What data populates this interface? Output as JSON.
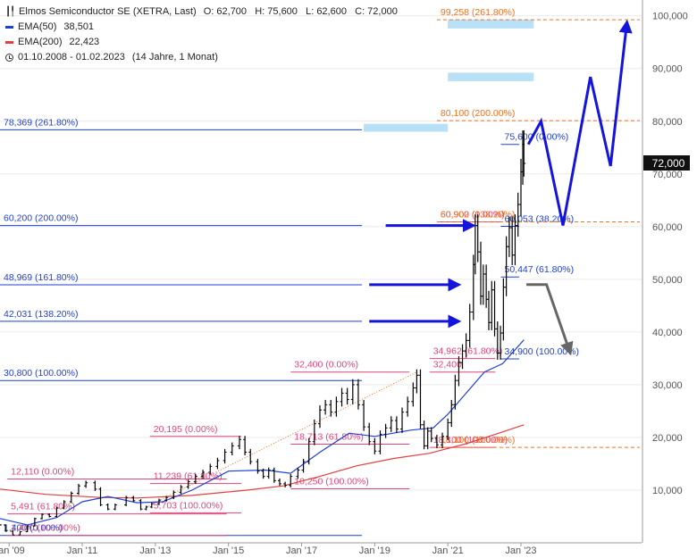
{
  "header": {
    "instrument": "Elmos Semiconductor SE (XETRA, Last)",
    "ohlc": "O: 62,700   H: 75,600   L: 62,600   C: 72,000",
    "ema50_label": "EMA(50)",
    "ema50_value": "38,501",
    "ema200_label": "EMA(200)",
    "ema200_value": "22,423",
    "range": "01.10.2008 - 01.02.2023",
    "duration": "(14 Jahre, 1 Monat)",
    "price_badge": "72,000"
  },
  "colors": {
    "candle": "#000000",
    "ema50": "#1f3fd6",
    "ema200": "#e04040",
    "fib_blue": "#1f3fd6",
    "fib_pink": "#e0457a",
    "fib_orange": "#f07020",
    "box_lightblue": "#b8e0f6",
    "arrow_blue": "#1414dc",
    "arrow_gray": "#666666",
    "badge_bg": "#111111",
    "badge_text": "#ffffff",
    "grid": "#eaeaea",
    "axis_text": "#555555"
  },
  "chart_data": {
    "type": "candlestick",
    "x_ticks": [
      "Jan '09",
      "Jan '11",
      "Jan '13",
      "Jan '15",
      "Jan '17",
      "Jan '19",
      "Jan '21",
      "Jan '23"
    ],
    "y_ticks": [
      "10,000",
      "20,000",
      "30,000",
      "40,000",
      "50,000",
      "60,000",
      "70,000",
      "80,000",
      "90,000",
      "100,000"
    ],
    "y_tick_values": [
      10000,
      20000,
      30000,
      40000,
      50000,
      60000,
      70000,
      80000,
      90000,
      100000
    ],
    "ylim": [
      0,
      103000
    ],
    "xlim": [
      2008.75,
      2026.3
    ],
    "prices": [
      [
        2008.75,
        3400
      ],
      [
        2008.9,
        2200
      ],
      [
        2009.1,
        1500
      ],
      [
        2009.3,
        2100
      ],
      [
        2009.5,
        3200
      ],
      [
        2009.7,
        4600
      ],
      [
        2009.9,
        5400
      ],
      [
        2010.1,
        5000
      ],
      [
        2010.3,
        6600
      ],
      [
        2010.5,
        7800
      ],
      [
        2010.7,
        9400
      ],
      [
        2010.9,
        10800
      ],
      [
        2011.1,
        11400
      ],
      [
        2011.35,
        10200
      ],
      [
        2011.5,
        7200
      ],
      [
        2011.7,
        6400
      ],
      [
        2011.9,
        7200
      ],
      [
        2012.2,
        8600
      ],
      [
        2012.4,
        8000
      ],
      [
        2012.6,
        6400
      ],
      [
        2012.75,
        6800
      ],
      [
        2012.9,
        7400
      ],
      [
        2013.1,
        8100
      ],
      [
        2013.3,
        8600
      ],
      [
        2013.5,
        9600
      ],
      [
        2013.7,
        10600
      ],
      [
        2013.9,
        11600
      ],
      [
        2014.1,
        12600
      ],
      [
        2014.3,
        13400
      ],
      [
        2014.5,
        14500
      ],
      [
        2014.7,
        15600
      ],
      [
        2014.9,
        17200
      ],
      [
        2015.1,
        18400
      ],
      [
        2015.3,
        19600
      ],
      [
        2015.45,
        17200
      ],
      [
        2015.6,
        15400
      ],
      [
        2015.8,
        13600
      ],
      [
        2015.95,
        12600
      ],
      [
        2016.1,
        13800
      ],
      [
        2016.25,
        11800
      ],
      [
        2016.4,
        11200
      ],
      [
        2016.55,
        10900
      ],
      [
        2016.7,
        12600
      ],
      [
        2016.9,
        13800
      ],
      [
        2017.05,
        15400
      ],
      [
        2017.2,
        19200
      ],
      [
        2017.35,
        22600
      ],
      [
        2017.5,
        25200
      ],
      [
        2017.65,
        26200
      ],
      [
        2017.8,
        24800
      ],
      [
        2017.95,
        26800
      ],
      [
        2018.1,
        28400
      ],
      [
        2018.25,
        27200
      ],
      [
        2018.4,
        30000
      ],
      [
        2018.55,
        26200
      ],
      [
        2018.7,
        22000
      ],
      [
        2018.85,
        19200
      ],
      [
        2019.0,
        17400
      ],
      [
        2019.15,
        20600
      ],
      [
        2019.3,
        21800
      ],
      [
        2019.45,
        23200
      ],
      [
        2019.6,
        21600
      ],
      [
        2019.75,
        24800
      ],
      [
        2019.9,
        26800
      ],
      [
        2020.05,
        29400
      ],
      [
        2020.15,
        31800
      ],
      [
        2020.25,
        22400
      ],
      [
        2020.35,
        18400
      ],
      [
        2020.45,
        21200
      ],
      [
        2020.55,
        19800
      ],
      [
        2020.7,
        18600
      ],
      [
        2020.85,
        20200
      ],
      [
        2021.0,
        22800
      ],
      [
        2021.1,
        26200
      ],
      [
        2021.2,
        30800
      ],
      [
        2021.3,
        34200
      ],
      [
        2021.4,
        36400
      ],
      [
        2021.5,
        38400
      ],
      [
        2021.6,
        43800
      ],
      [
        2021.7,
        52800
      ],
      [
        2021.75,
        60200
      ],
      [
        2021.82,
        55200
      ],
      [
        2021.9,
        46800
      ],
      [
        2021.97,
        51000
      ],
      [
        2022.05,
        46200
      ],
      [
        2022.12,
        41800
      ],
      [
        2022.2,
        48000
      ],
      [
        2022.28,
        40600
      ],
      [
        2022.36,
        36000
      ],
      [
        2022.44,
        39800
      ],
      [
        2022.52,
        48500
      ],
      [
        2022.6,
        56200
      ],
      [
        2022.68,
        59800
      ],
      [
        2022.76,
        54600
      ],
      [
        2022.84,
        60200
      ],
      [
        2022.92,
        64200
      ],
      [
        2023.0,
        70400
      ],
      [
        2023.05,
        75600
      ],
      [
        2023.08,
        72000
      ]
    ],
    "ema50": [
      [
        2008.75,
        4600
      ],
      [
        2009.5,
        3400
      ],
      [
        2010.3,
        4800
      ],
      [
        2011.0,
        7800
      ],
      [
        2011.7,
        8800
      ],
      [
        2012.5,
        7600
      ],
      [
        2013.2,
        7800
      ],
      [
        2014.0,
        10000
      ],
      [
        2015.0,
        13600
      ],
      [
        2016.0,
        13800
      ],
      [
        2016.7,
        13200
      ],
      [
        2017.5,
        17200
      ],
      [
        2018.3,
        20800
      ],
      [
        2019.0,
        20200
      ],
      [
        2020.0,
        21400
      ],
      [
        2020.6,
        21800
      ],
      [
        2021.0,
        24400
      ],
      [
        2021.5,
        28400
      ],
      [
        2022.0,
        32400
      ],
      [
        2022.5,
        34000
      ],
      [
        2023.08,
        38500
      ]
    ],
    "ema200": [
      [
        2008.75,
        10200
      ],
      [
        2010.0,
        9200
      ],
      [
        2011.5,
        8600
      ],
      [
        2012.5,
        8500
      ],
      [
        2014.0,
        9000
      ],
      [
        2015.5,
        10000
      ],
      [
        2016.5,
        10800
      ],
      [
        2017.5,
        12600
      ],
      [
        2018.5,
        14600
      ],
      [
        2019.5,
        16000
      ],
      [
        2020.5,
        17000
      ],
      [
        2021.5,
        18800
      ],
      [
        2022.3,
        20600
      ],
      [
        2023.08,
        22400
      ]
    ],
    "fib_sets": [
      {
        "color_key": "fib_blue",
        "x_start": 2008.75,
        "x_end": 2018.65,
        "levels": [
          {
            "value": 78369,
            "label": "78,369 (261.80%)"
          },
          {
            "value": 60200,
            "label": "60,200 (200.00%)"
          },
          {
            "value": 48969,
            "label": "48,969 (161.80%)"
          },
          {
            "value": 42031,
            "label": "42,031 (138.20%)"
          },
          {
            "value": 30800,
            "label": "30,800 (100.00%)"
          },
          {
            "value": 1400,
            "label": "1,400 (0.00%)"
          }
        ]
      },
      {
        "color_key": "fib_pink",
        "x_start": 2008.95,
        "x_end": 2014.95,
        "levels": [
          {
            "value": 12110,
            "label": "12,110 (0.00%)"
          },
          {
            "value": 5491,
            "label": "5,491 (61.80%)"
          },
          {
            "value": 1400,
            "label": "1,400 (100.00%)"
          }
        ]
      },
      {
        "color_key": "fib_pink",
        "x_start": 2012.85,
        "x_end": 2015.35,
        "levels": [
          {
            "value": 20195,
            "label": "20,195 (0.00%)"
          },
          {
            "value": 11239,
            "label": "11,239 (61.80%)"
          },
          {
            "value": 5703,
            "label": "5,703 (100.00%)"
          }
        ]
      },
      {
        "color_key": "fib_pink",
        "x_start": 2016.7,
        "x_end": 2019.95,
        "levels": [
          {
            "value": 32400,
            "label": "32,400 (0.00%)"
          },
          {
            "value": 18713,
            "label": "18,713 (61.80%)"
          },
          {
            "value": 10250,
            "label": "10,250 (100.00%)"
          }
        ]
      },
      {
        "color_key": "fib_pink",
        "x_start": 2020.5,
        "x_end": 2022.3,
        "levels": [
          {
            "value": 32400,
            "label": "32,400"
          },
          {
            "value": 34962,
            "label": "34,962 (61.80%)"
          },
          {
            "value": 18100,
            "label": "18,100 (100.00%)"
          }
        ]
      },
      {
        "color_key": "fib_pink",
        "x_start": 2020.7,
        "x_end": 2022.45,
        "levels": [
          {
            "value": 60900,
            "label": "60,900 (0.00%)"
          }
        ]
      },
      {
        "color_key": "fib_blue",
        "x_start": 2022.45,
        "x_end": 2022.95,
        "levels": [
          {
            "value": 75600,
            "label": "75,600 (0.00%)"
          },
          {
            "value": 60053,
            "label": "60,053 (38.20%)"
          },
          {
            "value": 50447,
            "label": "50,447 (61.80%)"
          },
          {
            "value": 34900,
            "label": "34,900 (100.00%)"
          }
        ]
      },
      {
        "color_key": "fib_orange",
        "dashed": true,
        "x_start": 2020.7,
        "x_end": 2026.25,
        "levels": [
          {
            "value": 99258,
            "label": "99,258 (261.80%)"
          },
          {
            "value": 80100,
            "label": "80,100 (200.00%)"
          },
          {
            "value": 60902,
            "label": "60,902 (138.20%)"
          },
          {
            "value": 18100,
            "label": "18,100 (100.00%)"
          }
        ]
      }
    ],
    "target_boxes": [
      {
        "x0": 2021.0,
        "x1": 2023.35,
        "y0": 97600,
        "y1": 99300
      },
      {
        "x0": 2021.0,
        "x1": 2023.35,
        "y0": 87600,
        "y1": 89200
      },
      {
        "x0": 2018.7,
        "x1": 2021.0,
        "y0": 78000,
        "y1": 79500
      }
    ],
    "trend_line": {
      "points": [
        [
          2012.75,
          6800
        ],
        [
          2020.15,
          32400
        ]
      ]
    },
    "blue_arrows": [
      {
        "points": [
          [
            2019.3,
            60200
          ],
          [
            2021.7,
            60200
          ]
        ]
      },
      {
        "points": [
          [
            2018.85,
            48969
          ],
          [
            2021.3,
            48969
          ]
        ]
      },
      {
        "points": [
          [
            2018.85,
            42031
          ],
          [
            2021.3,
            42031
          ]
        ]
      }
    ],
    "blue_zigzag": {
      "points": [
        [
          2023.2,
          75600
        ],
        [
          2023.55,
          80000
        ],
        [
          2024.15,
          60200
        ],
        [
          2024.9,
          88400
        ],
        [
          2025.45,
          71500
        ],
        [
          2025.9,
          98800
        ]
      ]
    },
    "gray_arrow": {
      "points": [
        [
          2023.15,
          49000
        ],
        [
          2023.7,
          49000
        ],
        [
          2024.35,
          36000
        ]
      ]
    }
  }
}
